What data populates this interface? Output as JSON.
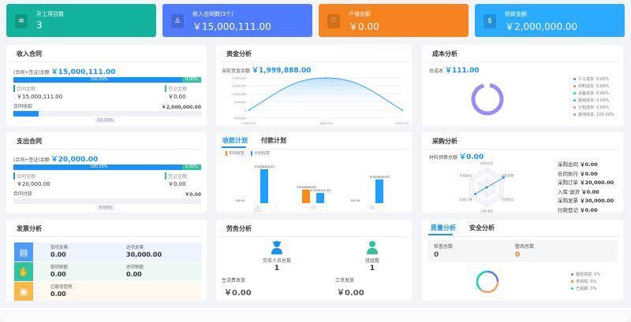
{
  "cards": [
    {
      "title": "开工项目数",
      "value": "3",
      "color": "#13b29c",
      "icon": "layers-icon"
    },
    {
      "title": "收入合同数(3个)",
      "value": "￥15,000,111.00",
      "color": "#4f7cff",
      "icon": "stamp-icon"
    },
    {
      "title": "产值金额",
      "value": "￥0.00",
      "color": "#f5831f",
      "icon": "heart-shield-icon"
    },
    {
      "title": "收款金额",
      "value": "￥2,000,000.00",
      "color": "#2aabff",
      "icon": "money-bag-icon"
    }
  ],
  "income": {
    "title": "收入合同",
    "balance_label": "(合同+签证)余额",
    "balance": "￥15,000,111.00",
    "contract_pct": "100.00%",
    "visa_pct": "0.00%",
    "contract_label": "合同金额",
    "contract_value": "￥15,000,111.00",
    "visa_label": "签证金额",
    "visa_value": "￥0.00",
    "collect_label": "合同收款",
    "collect_value": "￥2,000,000.00",
    "collect_pct": "13.33%",
    "collect_progress": 13.33
  },
  "expense": {
    "title": "支出合同",
    "balance_label": "(合同+签证)余额",
    "balance": "￥20,000.00",
    "contract_pct": "100.00%",
    "visa_pct": "0.00%",
    "contract_label": "合同金额",
    "contract_value": "￥20,000.00",
    "visa_label": "签证金额",
    "visa_value": "￥0.00",
    "pay_label": "合同付款",
    "pay_value": "￥0.00",
    "pay_pct": "0.00%",
    "pay_progress": 0
  },
  "fund": {
    "title": "资金分析",
    "balance_label": "当前资金余额",
    "balance": "￥1,999,888.00",
    "chart_data": {
      "type": "area",
      "x": [
        "2024-01",
        "2024-02",
        "2024-03"
      ],
      "values": [
        0,
        2000000,
        0
      ],
      "yticks": [
        "2,000,000",
        "1,500,000",
        "1,000,000",
        "500,000",
        "0",
        "-500,000"
      ],
      "ylim": [
        -500000,
        2000000
      ]
    }
  },
  "cost": {
    "title": "成本分析",
    "total_label": "总成本",
    "total": "￥111.00",
    "legend": [
      {
        "label": "人工成本: 0.00%",
        "color": "#4f7cff"
      },
      {
        "label": "材料成本: 0.00%",
        "color": "#f5831f"
      },
      {
        "label": "设备成本: 0.00%",
        "color": "#13d6b0"
      },
      {
        "label": "费用成本: 0.00%",
        "color": "#2aabff"
      },
      {
        "label": "分包成本: 0.00%",
        "color": "#ff7a8a"
      },
      {
        "label": "其他成本: 100.00%",
        "color": "#9a8cf0"
      }
    ]
  },
  "plan": {
    "tabs": [
      "收款计划",
      "付款计划"
    ],
    "legend": [
      {
        "label": "实际收款",
        "color": "#fa8c16"
      },
      {
        "label": "计划收款",
        "color": "#1fa0ff"
      }
    ],
    "chart_data": {
      "type": "bar",
      "categories": [
        "1月",
        "2月",
        "3月"
      ],
      "year": "2024",
      "series": [
        {
          "name": "实际收款",
          "values": [
            0,
            2000000,
            0
          ],
          "labels": [
            "￥0.00",
            "￥2000000.00",
            "￥0.00"
          ]
        },
        {
          "name": "计划收款",
          "values": [
            5000000,
            1500111,
            3500000
          ],
          "labels": [
            "￥5000000.00",
            "￥1500111.00",
            "￥3500000.00"
          ]
        }
      ]
    }
  },
  "purchase": {
    "title": "采购分析",
    "budget_label": "材料预算总额",
    "budget": "￥0.00",
    "radar": {
      "axes": [
        "采购合同",
        "采购发票",
        "付款登记",
        "入库·退货",
        "采购订单",
        "合同执行"
      ],
      "values": [
        0,
        30000,
        0,
        0,
        20000,
        0
      ],
      "max": 30000
    },
    "items": [
      {
        "label": "采购合同",
        "value": "￥0.00"
      },
      {
        "label": "合同执行",
        "value": "￥0.00"
      },
      {
        "label": "采购订单",
        "value": "￥20,000.00"
      },
      {
        "label": "入库·退货",
        "value": "￥0.00"
      },
      {
        "label": "采购发票",
        "value": "￥30,000.00"
      },
      {
        "label": "付款登记",
        "value": "￥0.00"
      }
    ]
  },
  "invoice": {
    "title": "发票分析",
    "rows": [
      {
        "icon": "invoice-icon",
        "color": "#4f9cf5",
        "bg": "#eef4fd",
        "a_label": "销项发票",
        "a_value": "0.00",
        "b_label": "进项发票",
        "b_value": "30,000.00"
      },
      {
        "icon": "tax-hand-icon",
        "color": "#2ec4a0",
        "bg": "#ecf8f1",
        "a_label": "销项税额",
        "a_value": "0.00",
        "b_label": "进项税额",
        "b_value": "0.00"
      },
      {
        "icon": "vat-icon",
        "color": "#fbb84a",
        "bg": "#fff8ef",
        "a_label": "应缴增值税",
        "a_value": "0.00"
      }
    ]
  },
  "labor": {
    "title": "劳务分析",
    "workers_label": "劳务人员总数",
    "workers": "1",
    "teams_label": "班组数",
    "teams": "1",
    "living_label": "生活费发放",
    "living": "￥0.00",
    "wage_label": "工资发放",
    "wage": "￥0.00"
  },
  "quality": {
    "tabs": [
      "质量分析",
      "安全分析"
    ],
    "check_label": "检查总数",
    "check": "0",
    "fix_label": "整改总数",
    "fix": "0",
    "legend": [
      {
        "label": "整改完成: 0%",
        "color": "#4f7cff"
      },
      {
        "label": "未完成: 0%",
        "color": "#f5831f"
      },
      {
        "label": "已逾期: 0%",
        "color": "#13d6b0"
      }
    ]
  }
}
